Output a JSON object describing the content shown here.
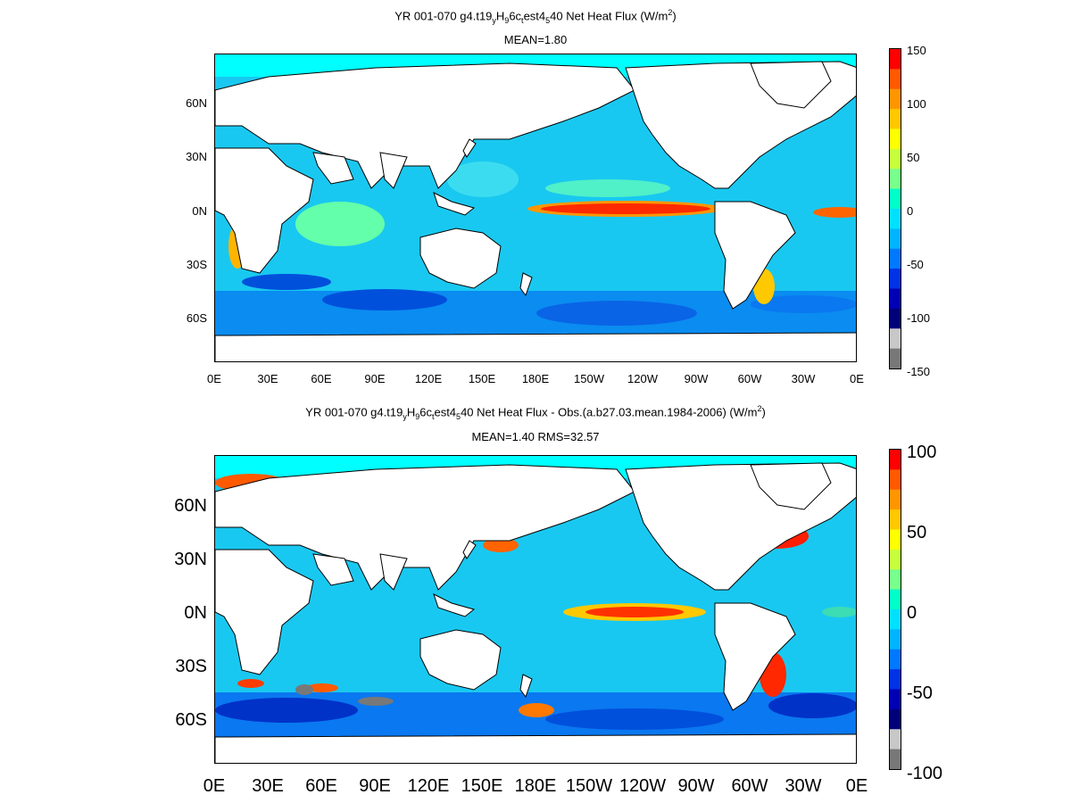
{
  "panels": [
    {
      "title_main": "YR 001-070 g4.t19",
      "title_sub1": "y",
      "title_mid1": "H",
      "title_sub2": "9",
      "title_mid2": "6c",
      "title_sub3": "t",
      "title_mid3": "est4",
      "title_sub4": "5",
      "title_end": "40  Net Heat Flux (W/m",
      "title_sup": "2",
      "title_close": ")",
      "stats": "MEAN=1.80",
      "lat_labels": [
        "60N",
        "30N",
        "0N",
        "30S",
        "60S"
      ],
      "lon_labels": [
        "0E",
        "30E",
        "60E",
        "90E",
        "120E",
        "150E",
        "180E",
        "150W",
        "120W",
        "90W",
        "60W",
        "30W",
        "0E"
      ],
      "colorbar_labels": [
        "150",
        "100",
        "50",
        "0",
        "-50",
        "-100",
        "-150"
      ]
    },
    {
      "title_main": "YR 001-070 g4.t19",
      "title_sub1": "y",
      "title_mid1": "H",
      "title_sub2": "9",
      "title_mid2": "6c",
      "title_sub3": "t",
      "title_mid3": "est4",
      "title_sub4": "5",
      "title_end": "40  Net Heat Flux - Obs.(a.b27.03.mean.1984-2006) (W/m",
      "title_sup": "2",
      "title_close": ")",
      "stats": "MEAN=1.40 RMS=32.57",
      "lat_labels": [
        "60N",
        "30N",
        "0N",
        "30S",
        "60S"
      ],
      "lon_labels": [
        "0E",
        "30E",
        "60E",
        "90E",
        "120E",
        "150E",
        "180E",
        "150W",
        "120W",
        "90W",
        "60W",
        "30W",
        "0E"
      ],
      "colorbar_labels": [
        "100",
        "50",
        "0",
        "-50",
        "-100"
      ]
    }
  ],
  "colors": {
    "ocean_base": "#19c8f0",
    "land": "#ffffff",
    "ice": "#00ffff",
    "colorbar": [
      "#ff0000",
      "#ff5a00",
      "#ff9600",
      "#ffc800",
      "#ffff00",
      "#c8ff3c",
      "#78ff8c",
      "#00ffc8",
      "#00e1ff",
      "#00b4ff",
      "#0078ff",
      "#0032e6",
      "#0000b4",
      "#000078",
      "#c8c8c8",
      "#787878"
    ]
  }
}
